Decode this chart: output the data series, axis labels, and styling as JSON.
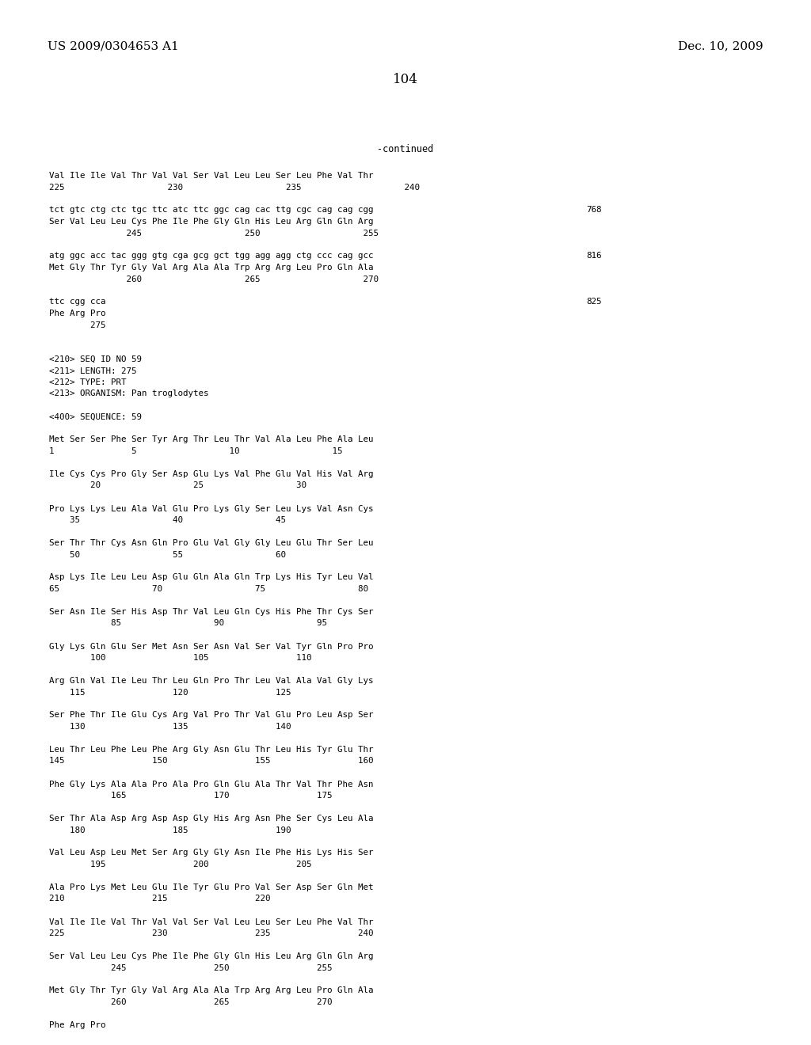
{
  "bg_color": "#ffffff",
  "header_left": "US 2009/0304653 A1",
  "header_right": "Dec. 10, 2009",
  "page_number": "104",
  "body_lines": [
    [
      "Val Ile Ile Val Thr Val Val Ser Val Leu Leu Ser Leu Phe Val Thr",
      ""
    ],
    [
      "225                    230                    235                    240",
      ""
    ],
    [
      "",
      ""
    ],
    [
      "tct gtc ctg ctc tgc ttc atc ttc ggc cag cac ttg cgc cag cag cgg",
      "768"
    ],
    [
      "Ser Val Leu Leu Cys Phe Ile Phe Gly Gln His Leu Arg Gln Gln Arg",
      ""
    ],
    [
      "               245                    250                    255",
      ""
    ],
    [
      "",
      ""
    ],
    [
      "atg ggc acc tac ggg gtg cga gcg gct tgg agg agg ctg ccc cag gcc",
      "816"
    ],
    [
      "Met Gly Thr Tyr Gly Val Arg Ala Ala Trp Arg Arg Leu Pro Gln Ala",
      ""
    ],
    [
      "               260                    265                    270",
      ""
    ],
    [
      "",
      ""
    ],
    [
      "ttc cgg cca",
      "825"
    ],
    [
      "Phe Arg Pro",
      ""
    ],
    [
      "        275",
      ""
    ],
    [
      "",
      ""
    ],
    [
      "",
      ""
    ],
    [
      "<210> SEQ ID NO 59",
      ""
    ],
    [
      "<211> LENGTH: 275",
      ""
    ],
    [
      "<212> TYPE: PRT",
      ""
    ],
    [
      "<213> ORGANISM: Pan troglodytes",
      ""
    ],
    [
      "",
      ""
    ],
    [
      "<400> SEQUENCE: 59",
      ""
    ],
    [
      "",
      ""
    ],
    [
      "Met Ser Ser Phe Ser Tyr Arg Thr Leu Thr Val Ala Leu Phe Ala Leu",
      ""
    ],
    [
      "1               5                  10                  15",
      ""
    ],
    [
      "",
      ""
    ],
    [
      "Ile Cys Cys Pro Gly Ser Asp Glu Lys Val Phe Glu Val His Val Arg",
      ""
    ],
    [
      "        20                  25                  30",
      ""
    ],
    [
      "",
      ""
    ],
    [
      "Pro Lys Lys Leu Ala Val Glu Pro Lys Gly Ser Leu Lys Val Asn Cys",
      ""
    ],
    [
      "    35                  40                  45",
      ""
    ],
    [
      "",
      ""
    ],
    [
      "Ser Thr Thr Cys Asn Gln Pro Glu Val Gly Gly Leu Glu Thr Ser Leu",
      ""
    ],
    [
      "    50                  55                  60",
      ""
    ],
    [
      "",
      ""
    ],
    [
      "Asp Lys Ile Leu Leu Asp Glu Gln Ala Gln Trp Lys His Tyr Leu Val",
      ""
    ],
    [
      "65                  70                  75                  80",
      ""
    ],
    [
      "",
      ""
    ],
    [
      "Ser Asn Ile Ser His Asp Thr Val Leu Gln Cys His Phe Thr Cys Ser",
      ""
    ],
    [
      "            85                  90                  95",
      ""
    ],
    [
      "",
      ""
    ],
    [
      "Gly Lys Gln Glu Ser Met Asn Ser Asn Val Ser Val Tyr Gln Pro Pro",
      ""
    ],
    [
      "        100                 105                 110",
      ""
    ],
    [
      "",
      ""
    ],
    [
      "Arg Gln Val Ile Leu Thr Leu Gln Pro Thr Leu Val Ala Val Gly Lys",
      ""
    ],
    [
      "    115                 120                 125",
      ""
    ],
    [
      "",
      ""
    ],
    [
      "Ser Phe Thr Ile Glu Cys Arg Val Pro Thr Val Glu Pro Leu Asp Ser",
      ""
    ],
    [
      "    130                 135                 140",
      ""
    ],
    [
      "",
      ""
    ],
    [
      "Leu Thr Leu Phe Leu Phe Arg Gly Asn Glu Thr Leu His Tyr Glu Thr",
      ""
    ],
    [
      "145                 150                 155                 160",
      ""
    ],
    [
      "",
      ""
    ],
    [
      "Phe Gly Lys Ala Ala Pro Ala Pro Gln Glu Ala Thr Val Thr Phe Asn",
      ""
    ],
    [
      "            165                 170                 175",
      ""
    ],
    [
      "",
      ""
    ],
    [
      "Ser Thr Ala Asp Arg Asp Asp Gly His Arg Asn Phe Ser Cys Leu Ala",
      ""
    ],
    [
      "    180                 185                 190",
      ""
    ],
    [
      "",
      ""
    ],
    [
      "Val Leu Asp Leu Met Ser Arg Gly Gly Asn Ile Phe His Lys His Ser",
      ""
    ],
    [
      "        195                 200                 205",
      ""
    ],
    [
      "",
      ""
    ],
    [
      "Ala Pro Lys Met Leu Glu Ile Tyr Glu Pro Val Ser Asp Ser Gln Met",
      ""
    ],
    [
      "210                 215                 220",
      ""
    ],
    [
      "",
      ""
    ],
    [
      "Val Ile Ile Val Thr Val Val Ser Val Leu Leu Ser Leu Phe Val Thr",
      ""
    ],
    [
      "225                 230                 235                 240",
      ""
    ],
    [
      "",
      ""
    ],
    [
      "Ser Val Leu Leu Cys Phe Ile Phe Gly Gln His Leu Arg Gln Gln Arg",
      ""
    ],
    [
      "            245                 250                 255",
      ""
    ],
    [
      "",
      ""
    ],
    [
      "Met Gly Thr Tyr Gly Val Arg Ala Ala Trp Arg Arg Leu Pro Gln Ala",
      ""
    ],
    [
      "            260                 265                 270",
      ""
    ],
    [
      "",
      ""
    ],
    [
      "Phe Arg Pro",
      ""
    ],
    [
      "        275",
      ""
    ]
  ]
}
